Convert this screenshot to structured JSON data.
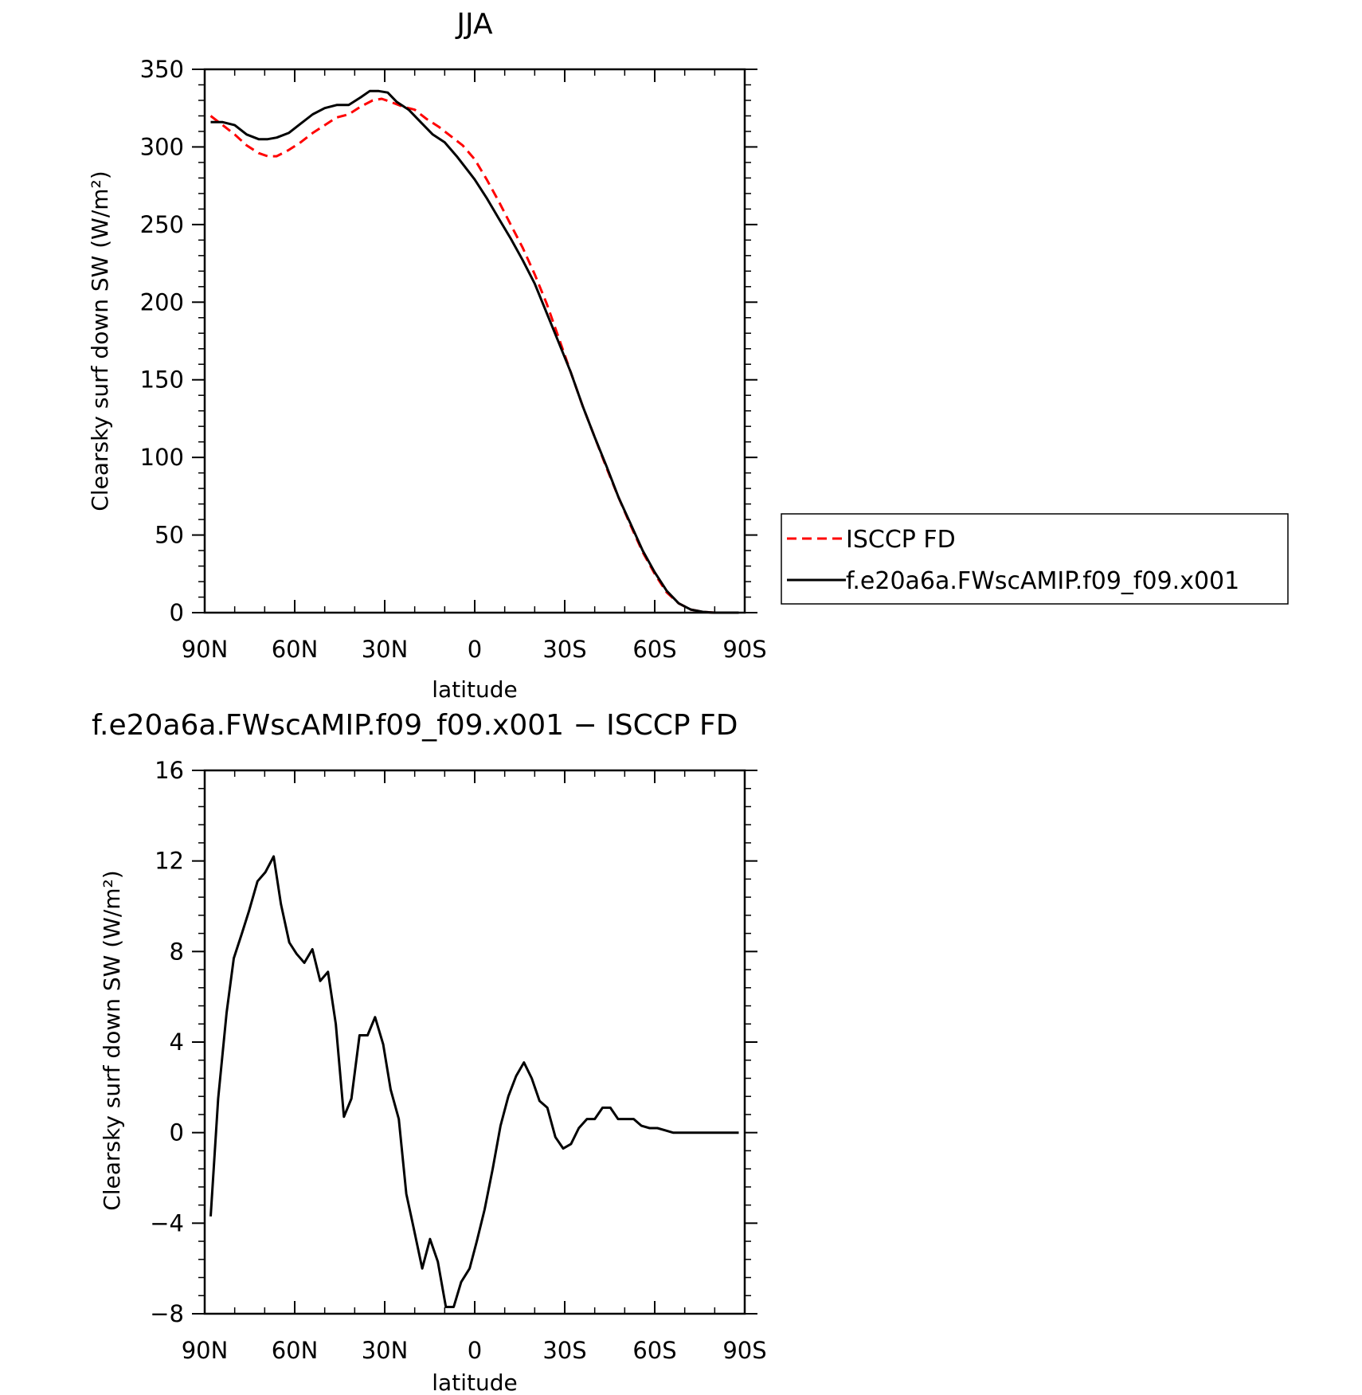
{
  "chart_data": [
    {
      "type": "line",
      "title": "JJA",
      "xlabel": "latitude",
      "ylabel": "Clearsky surf down SW (W/m²)",
      "xlim": [
        90,
        -90
      ],
      "ylim": [
        0,
        350
      ],
      "xticks": [
        {
          "value": 90,
          "label": "90N"
        },
        {
          "value": 60,
          "label": "60N"
        },
        {
          "value": 30,
          "label": "30N"
        },
        {
          "value": 0,
          "label": "0"
        },
        {
          "value": -30,
          "label": "30S"
        },
        {
          "value": -60,
          "label": "60S"
        },
        {
          "value": -90,
          "label": "90S"
        }
      ],
      "yticks": [
        {
          "value": 0,
          "label": "0"
        },
        {
          "value": 50,
          "label": "50"
        },
        {
          "value": 100,
          "label": "100"
        },
        {
          "value": 150,
          "label": "150"
        },
        {
          "value": 200,
          "label": "200"
        },
        {
          "value": 250,
          "label": "250"
        },
        {
          "value": 300,
          "label": "300"
        },
        {
          "value": 350,
          "label": "350"
        }
      ],
      "grid": false,
      "legend_position": "right",
      "series": [
        {
          "name": "ISCCP FD",
          "color": "#ff0000",
          "dash": true,
          "x": [
            88,
            84,
            80,
            76,
            72,
            69,
            66,
            62,
            58,
            54,
            50,
            46,
            42,
            38,
            34,
            31,
            28,
            24,
            20,
            16,
            12,
            8,
            4,
            0,
            -4,
            -8,
            -12,
            -16,
            -20,
            -24,
            -28,
            -32,
            -36,
            -40,
            -44,
            -48,
            -52,
            -56,
            -60,
            -64,
            -68,
            -72,
            -76,
            -80,
            -84,
            -88
          ],
          "y": [
            320,
            314,
            308,
            301,
            296,
            294,
            294,
            298,
            303,
            309,
            314,
            319,
            321,
            326,
            330,
            331,
            329,
            326,
            324,
            318,
            313,
            307,
            301,
            292,
            279,
            265,
            250,
            235,
            218,
            199,
            177,
            155,
            133,
            113,
            93,
            74,
            56,
            39,
            25,
            13,
            6,
            2,
            0.5,
            0,
            0,
            0
          ]
        },
        {
          "name": "f.e20a6a.FWscAMIP.f09_f09.x001",
          "color": "#000000",
          "dash": false,
          "x": [
            88,
            84,
            80,
            76,
            72,
            69,
            66,
            62,
            58,
            54,
            50,
            46,
            42,
            38,
            35,
            32,
            29,
            26,
            22,
            18,
            14,
            10,
            6,
            2,
            0,
            -4,
            -8,
            -12,
            -16,
            -20,
            -24,
            -28,
            -32,
            -36,
            -40,
            -44,
            -48,
            -52,
            -56,
            -60,
            -64,
            -68,
            -72,
            -76,
            -80,
            -84,
            -88
          ],
          "y": [
            316,
            316,
            314,
            308,
            305,
            305,
            306,
            309,
            315,
            321,
            325,
            327,
            327,
            332,
            336,
            336,
            335,
            329,
            324,
            316,
            308,
            303,
            294,
            284,
            279,
            267,
            254,
            241,
            227,
            212,
            193,
            174,
            155,
            133,
            113,
            94,
            74,
            57,
            40,
            26,
            14,
            6,
            2,
            0.5,
            0,
            0,
            0
          ]
        }
      ]
    },
    {
      "type": "line",
      "title": "f.e20a6a.FWscAMIP.f09_f09.x001 − ISCCP FD",
      "xlabel": "latitude",
      "ylabel": "Clearsky surf down SW (W/m²)",
      "xlim": [
        90,
        -90
      ],
      "ylim": [
        -8,
        16
      ],
      "xticks": [
        {
          "value": 90,
          "label": "90N"
        },
        {
          "value": 60,
          "label": "60N"
        },
        {
          "value": 30,
          "label": "30N"
        },
        {
          "value": 0,
          "label": "0"
        },
        {
          "value": -30,
          "label": "30S"
        },
        {
          "value": -60,
          "label": "60S"
        },
        {
          "value": -90,
          "label": "90S"
        }
      ],
      "yticks": [
        {
          "value": -8,
          "label": "−8"
        },
        {
          "value": -4,
          "label": "−4"
        },
        {
          "value": 0,
          "label": "0"
        },
        {
          "value": 4,
          "label": "4"
        },
        {
          "value": 8,
          "label": "8"
        },
        {
          "value": 12,
          "label": "12"
        },
        {
          "value": 16,
          "label": "16"
        }
      ],
      "grid": false,
      "series": [
        {
          "color": "#000000",
          "dash": false,
          "x": [
            88,
            85.5,
            82.7,
            80.3,
            77.6,
            75.2,
            72.4,
            69.8,
            67.0,
            64.6,
            61.8,
            59.4,
            56.8,
            54.1,
            51.5,
            48.9,
            46.3,
            43.6,
            41.1,
            38.4,
            35.7,
            33.2,
            30.5,
            28.0,
            25.3,
            22.8,
            20.2,
            17.5,
            14.9,
            12.3,
            9.6,
            7.0,
            4.5,
            1.7,
            -0.7,
            -3.3,
            -6.0,
            -8.6,
            -11.2,
            -13.8,
            -16.4,
            -19.0,
            -21.6,
            -24.2,
            -26.9,
            -29.5,
            -32.1,
            -34.7,
            -37.4,
            -40.0,
            -42.6,
            -45.2,
            -47.8,
            -50.4,
            -53.0,
            -55.6,
            -58.3,
            -60.9,
            -63.5,
            -66.1,
            -68.7,
            -71.3,
            -73.9,
            -76.6,
            -79.2,
            -81.8,
            -84.4,
            -87.0,
            -88.0
          ],
          "y": [
            -3.7,
            1.5,
            5.3,
            7.7,
            8.8,
            9.8,
            11.1,
            11.5,
            12.2,
            10.1,
            8.4,
            7.9,
            7.5,
            8.1,
            6.7,
            7.1,
            4.8,
            0.7,
            1.5,
            4.3,
            4.3,
            5.1,
            3.9,
            1.9,
            0.6,
            -2.7,
            -4.3,
            -6.0,
            -4.7,
            -5.7,
            -7.7,
            -7.7,
            -6.6,
            -6.0,
            -4.8,
            -3.4,
            -1.6,
            0.3,
            1.6,
            2.5,
            3.1,
            2.4,
            1.4,
            1.1,
            -0.2,
            -0.7,
            -0.5,
            0.2,
            0.6,
            0.6,
            1.1,
            1.1,
            0.6,
            0.6,
            0.6,
            0.3,
            0.2,
            0.2,
            0.1,
            0.0,
            0.0,
            0.0,
            0.0,
            0.0,
            0.0,
            0.0,
            0.0,
            0.0,
            0.0
          ]
        }
      ]
    }
  ]
}
